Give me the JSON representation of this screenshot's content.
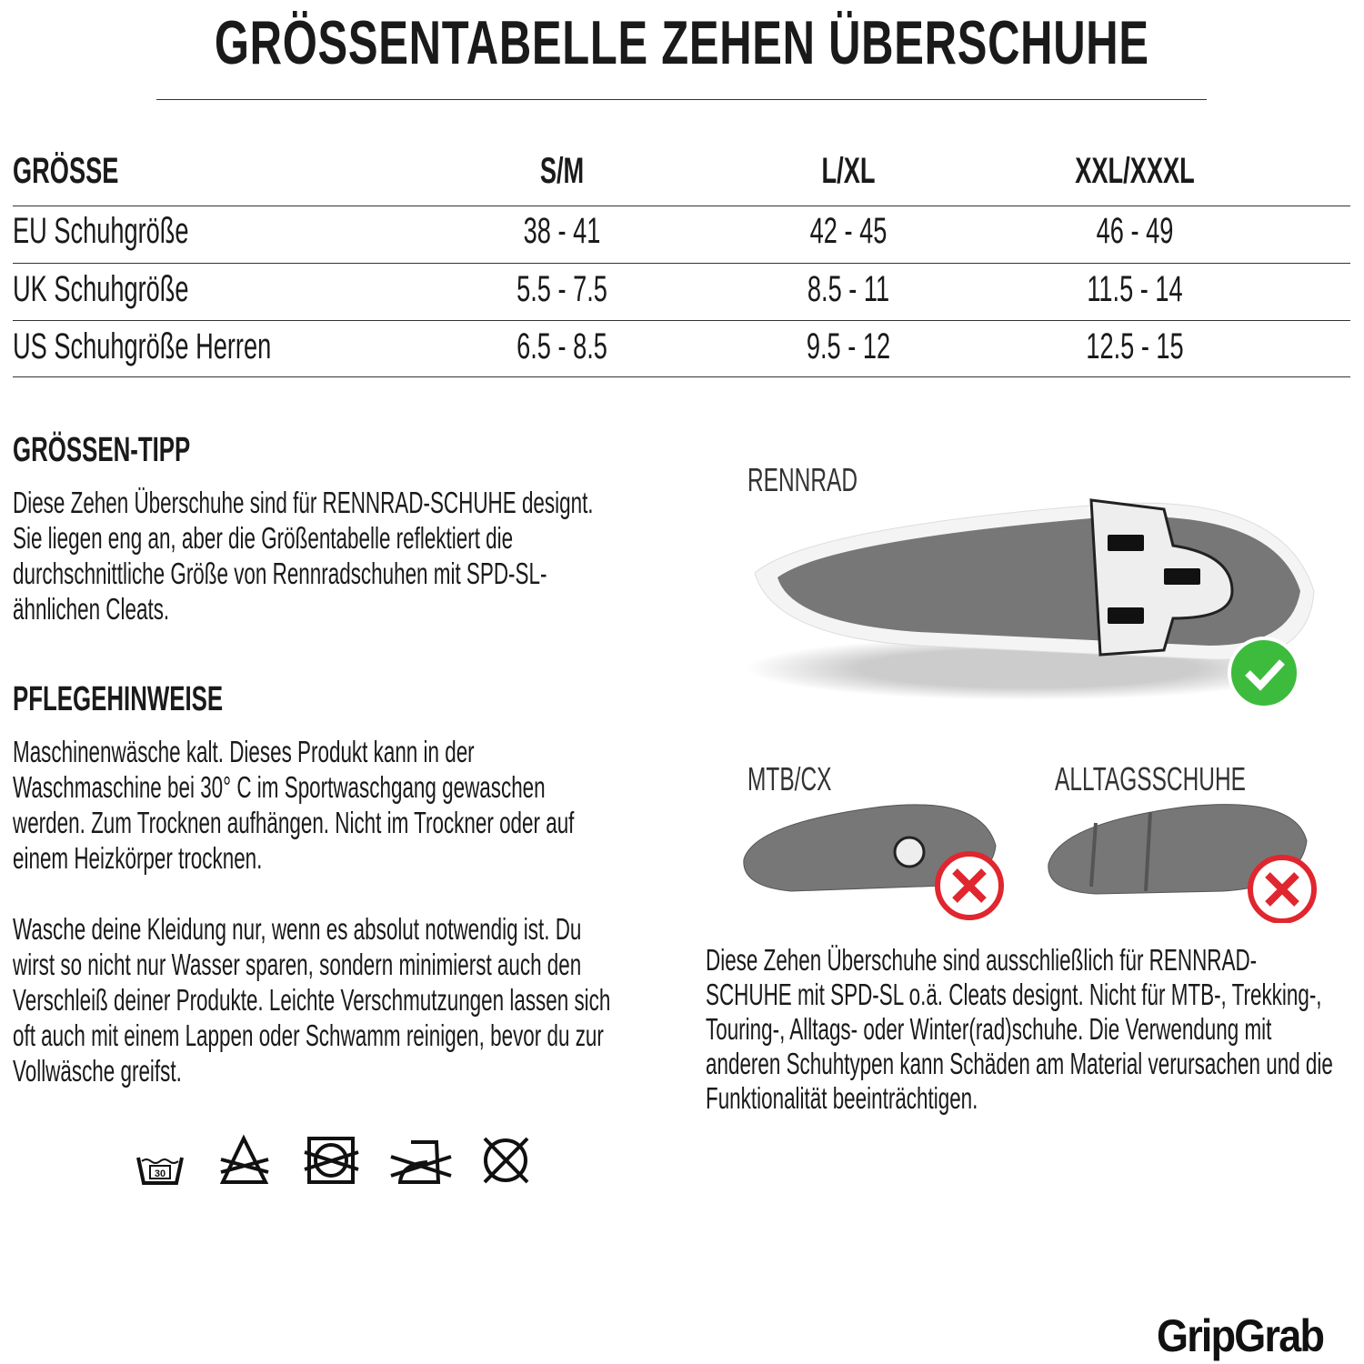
{
  "title": "GRÖSSENTABELLE ZEHEN ÜBERSCHUHE",
  "table": {
    "headers": [
      "GRÖSSE",
      "S/M",
      "L/XL",
      "XXL/XXXL"
    ],
    "rows": [
      {
        "label": "EU Schuhgröße",
        "values": [
          "38 - 41",
          "42 - 45",
          "46 - 49"
        ]
      },
      {
        "label": "UK Schuhgröße",
        "values": [
          "5.5 - 7.5",
          "8.5 - 11",
          "11.5 - 14"
        ]
      },
      {
        "label": "US Schuhgröße Herren",
        "values": [
          "6.5 - 8.5",
          "9.5 - 12",
          "12.5 - 15"
        ]
      }
    ]
  },
  "tip": {
    "heading": "GRÖSSEN-TIPP",
    "lines": [
      "Diese Zehen Überschuhe sind für RENNRAD-SCHUHE designt.",
      "Sie liegen eng an, aber die Größentabelle reflektiert die",
      "durchschnittliche Größe von Rennradschuhen mit SPD-SL-",
      "ähnlichen Cleats."
    ]
  },
  "care": {
    "heading": "PFLEGEHINWEISE",
    "lines": [
      "Maschinenwäsche kalt. Dieses Produkt kann in der",
      "Waschmaschine bei 30° C im Sportwaschgang gewaschen",
      "werden. Zum Trocknen aufhängen. Nicht im Trockner oder auf",
      "einem Heizkörper trocknen."
    ],
    "lines2": [
      "Wasche deine Kleidung nur, wenn es absolut notwendig ist. Du",
      "wirst so nicht nur Wasser sparen, sondern minimierst auch den",
      "Verschleiß deiner Produkte. Leichte Verschmutzungen lassen sich",
      "oft auch mit einem Lappen oder Schwamm reinigen, bevor du zur",
      "Vollwäsche greifst."
    ],
    "wash_temp": "30",
    "icons": [
      "wash-30-icon",
      "no-bleach-icon",
      "no-tumble-dry-icon",
      "no-iron-icon",
      "no-dry-clean-icon"
    ]
  },
  "shoes": {
    "road": "RENNRAD",
    "mtb": "MTB/CX",
    "casual": "ALLTAGSSCHUHE",
    "note": [
      "Diese Zehen Überschuhe sind ausschließlich für RENNRAD-",
      "SCHUHE mit SPD-SL o.ä. Cleats designt. Nicht für MTB-, Trekking-,",
      "Touring-, Alltags- oder Winter(rad)schuhe. Die Verwendung mit",
      "anderen Schuhtypen kann Schäden am Material verursachen und die",
      "Funktionalität beeinträchtigen."
    ],
    "ok_color": "#3dbb3d",
    "no_color": "#e0262e"
  },
  "brand": "GripGrab"
}
